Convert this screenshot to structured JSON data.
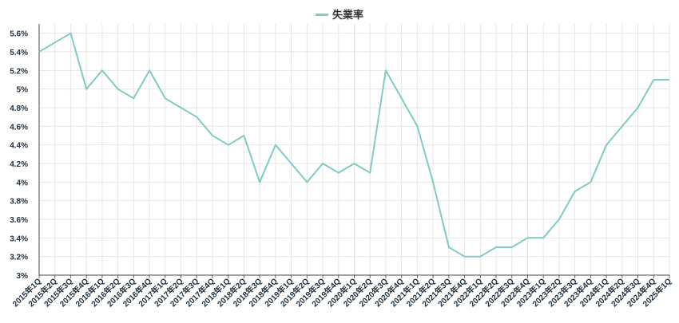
{
  "chart_data": {
    "type": "line",
    "series": [
      {
        "name": "失業率",
        "color": "#80cbc4",
        "values": [
          5.4,
          5.5,
          5.6,
          5.0,
          5.2,
          5.0,
          4.9,
          5.2,
          4.9,
          4.8,
          4.7,
          4.5,
          4.4,
          4.5,
          4.0,
          4.4,
          4.2,
          4.0,
          4.2,
          4.1,
          4.2,
          4.1,
          5.2,
          4.9,
          4.6,
          4.0,
          3.3,
          3.2,
          3.2,
          3.3,
          3.3,
          3.4,
          3.4,
          3.6,
          3.9,
          4.0,
          4.4,
          4.6,
          4.8,
          5.1,
          5.1
        ]
      }
    ],
    "categories": [
      "2015年1Q",
      "2015年2Q",
      "2015年3Q",
      "2015年4Q",
      "2016年1Q",
      "2016年2Q",
      "2016年3Q",
      "2016年4Q",
      "2017年1Q",
      "2017年2Q",
      "2017年3Q",
      "2017年4Q",
      "2018年1Q",
      "2018年2Q",
      "2018年3Q",
      "2018年4Q",
      "2019年1Q",
      "2019年2Q",
      "2019年3Q",
      "2019年4Q",
      "2020年1Q",
      "2020年2Q",
      "2020年3Q",
      "2020年4Q",
      "2021年1Q",
      "2021年2Q",
      "2021年3Q",
      "2021年4Q",
      "2022年1Q",
      "2022年2Q",
      "2022年3Q",
      "2022年4Q",
      "2023年1Q",
      "2023年2Q",
      "2023年3Q",
      "2023年4Q",
      "2024年1Q",
      "2024年2Q",
      "2024年3Q",
      "2024年4Q",
      "2025年1Q"
    ],
    "y_ticks": [
      "3%",
      "3.2%",
      "3.4%",
      "3.6%",
      "3.8%",
      "4%",
      "4.2%",
      "4.4%",
      "4.6%",
      "4.8%",
      "5%",
      "5.2%",
      "5.4%",
      "5.6%"
    ],
    "ylim": [
      3.0,
      5.7
    ],
    "y_tick_values": [
      3.0,
      3.2,
      3.4,
      3.6,
      3.8,
      4.0,
      4.2,
      4.4,
      4.6,
      4.8,
      5.0,
      5.2,
      5.4,
      5.6
    ],
    "grid": true,
    "legend_position": "top-center",
    "colors": {
      "grid": "#e6e6e6",
      "axis_text": "#1f2d3d",
      "line": "#80cbc4"
    }
  }
}
